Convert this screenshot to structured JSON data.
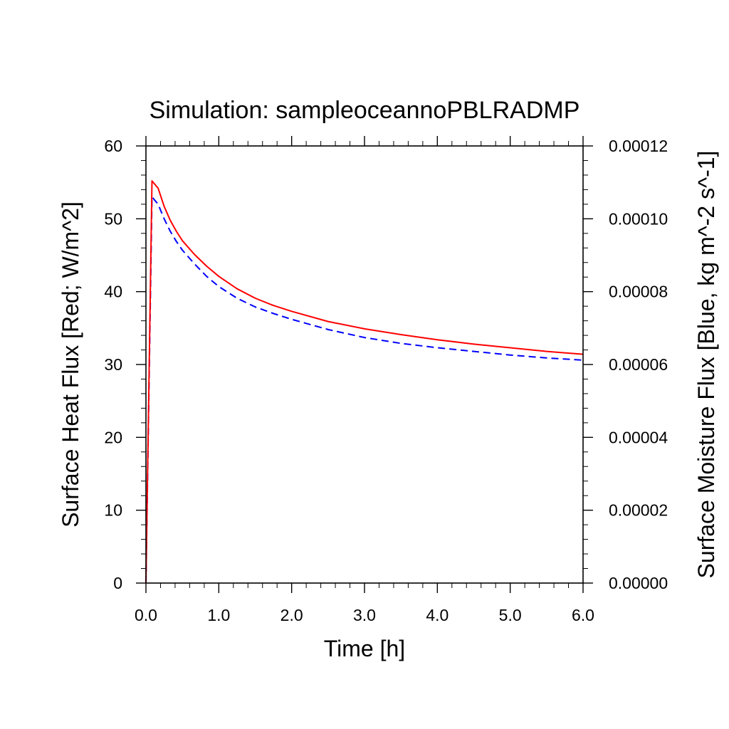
{
  "chart_data": {
    "type": "line",
    "title": "Simulation: sampleoceannoPBLRADMP",
    "xlabel": "Time [h]",
    "ylabel_left": "Surface Heat Flux [Red; W/m^2]",
    "ylabel_right": "Surface Moisture Flux [Blue, kg m^-2 s^-1]",
    "xlim": [
      0,
      6
    ],
    "ylim_left": [
      0,
      60
    ],
    "ylim_right": [
      0,
      0.00012
    ],
    "x_ticks": [
      0,
      1,
      2,
      3,
      4,
      5,
      6
    ],
    "x_tick_labels": [
      "0.0",
      "1.0",
      "2.0",
      "3.0",
      "4.0",
      "5.0",
      "6.0"
    ],
    "y_left_ticks": [
      0,
      10,
      20,
      30,
      40,
      50,
      60
    ],
    "y_left_tick_labels": [
      "0",
      "10",
      "20",
      "30",
      "40",
      "50",
      "60"
    ],
    "y_right_ticks": [
      0,
      2e-05,
      4e-05,
      6e-05,
      8e-05,
      0.0001,
      0.00012
    ],
    "y_right_tick_labels": [
      "0.00000",
      "0.00002",
      "0.00004",
      "0.00006",
      "0.00008",
      "0.00010",
      "0.00012"
    ],
    "grid": false,
    "series": [
      {
        "axis": "left",
        "color": "#ff0000",
        "dash": "solid",
        "x": [
          0,
          0.083,
          0.167,
          0.25,
          0.333,
          0.417,
          0.5,
          0.667,
          0.833,
          1.0,
          1.25,
          1.5,
          1.75,
          2.0,
          2.5,
          3.0,
          3.5,
          4.0,
          4.5,
          5.0,
          5.5,
          6.0
        ],
        "y": [
          0,
          55.2,
          54.2,
          51.7,
          49.8,
          48.3,
          47.0,
          45.1,
          43.5,
          42.1,
          40.4,
          39.1,
          38.1,
          37.3,
          35.9,
          34.9,
          34.1,
          33.4,
          32.8,
          32.3,
          31.8,
          31.4
        ]
      },
      {
        "axis": "right",
        "color": "#0000ff",
        "dash": "dashed",
        "x": [
          0,
          0.083,
          0.167,
          0.25,
          0.333,
          0.417,
          0.5,
          0.667,
          0.833,
          1.0,
          1.25,
          1.5,
          1.75,
          2.0,
          2.5,
          3.0,
          3.5,
          4.0,
          4.5,
          5.0,
          5.5,
          6.0
        ],
        "y": [
          0,
          0.000106,
          0.000104,
          0.0001,
          9.66e-05,
          9.38e-05,
          9.14e-05,
          8.76e-05,
          8.42e-05,
          8.14e-05,
          7.82e-05,
          7.58e-05,
          7.4e-05,
          7.24e-05,
          6.96e-05,
          6.74e-05,
          6.58e-05,
          6.46e-05,
          6.36e-05,
          6.26e-05,
          6.18e-05,
          6.12e-05
        ]
      }
    ]
  }
}
